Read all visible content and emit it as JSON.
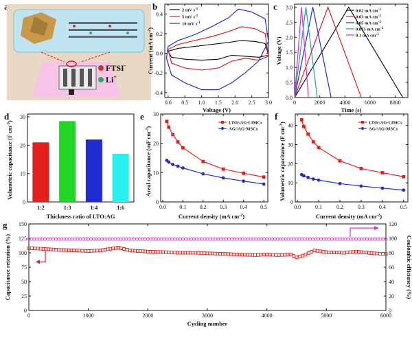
{
  "colors": {
    "red": "#e3201b",
    "blue": "#1f2ccf",
    "black": "#111111",
    "magenta": "#d52fd0",
    "green": "#23d623",
    "cyan": "#26f0f0",
    "teal": "#1aa0a0"
  },
  "panels": {
    "a": {
      "label": "a",
      "legend": [
        {
          "text": "FTSI",
          "sup": "-",
          "color": "#c0392b"
        },
        {
          "text": "Li",
          "sup": "+",
          "color": "#27ae60"
        }
      ]
    },
    "b": {
      "label": "b",
      "legend_items": [
        {
          "main": "2 mV s",
          "sup": "-1"
        },
        {
          "main": "5 mV s",
          "sup": "-1"
        },
        {
          "main": "10 mV s",
          "sup": "-1"
        }
      ],
      "ylabel_main": "Current (mA cm",
      "ylabel_sup": "-2",
      "ylabel_end": ")"
    },
    "c": {
      "label": "c",
      "legend_items": [
        {
          "main": "0.02 mA cm",
          "sup": "-2"
        },
        {
          "main": "0.03 mA cm",
          "sup": "-2"
        },
        {
          "main": "0.05 mA cm",
          "sup": "-2"
        },
        {
          "main": "0.075 mA cm",
          "sup": "-2"
        },
        {
          "main": "0.1 mA cm",
          "sup": "-2"
        }
      ]
    },
    "d": {
      "label": "d",
      "ylabel_main": "Volumetric capacitance (F cm",
      "ylabel_sup": "-3",
      "ylabel_end": ")"
    },
    "e": {
      "label": "e",
      "ylabel_main": "Areal capacitance (mF cm",
      "ylabel_sup": "-2",
      "ylabel_end": ")",
      "xlabel_main": "Current density (mA cm",
      "xlabel_sup": "-2",
      "xlabel_end": ")"
    },
    "f": {
      "label": "f",
      "ylabel_main": "Volumetric capacitance (F cm",
      "ylabel_sup": "-3",
      "ylabel_end": ")",
      "xlabel_main": "Current density (mA cm",
      "xlabel_sup": "-2",
      "xlabel_end": ")"
    },
    "g": {
      "label": "g"
    }
  },
  "chart_data": [
    {
      "id": "b",
      "type": "line",
      "xlabel": "Voltage (V)",
      "ylabel": "Current (mA cm-2)",
      "xlim": [
        -0.1,
        3.0
      ],
      "ylim": [
        -0.45,
        0.5
      ],
      "xticks": [
        0.0,
        0.5,
        1.0,
        1.5,
        2.0,
        2.5,
        3.0
      ],
      "yticks": [
        -0.4,
        -0.2,
        0.0,
        0.2,
        0.4
      ],
      "legend_position": "top-left",
      "series": [
        {
          "name": "2 mV s-1",
          "color": "#111111",
          "x": [
            0.0,
            0.3,
            0.8,
            1.3,
            1.8,
            2.2,
            2.6,
            2.9,
            3.0,
            2.7,
            2.3,
            1.9,
            1.5,
            1.0,
            0.5,
            0.1,
            0.0
          ],
          "y": [
            0.02,
            0.05,
            0.07,
            0.09,
            0.11,
            0.13,
            0.12,
            0.1,
            -0.02,
            -0.04,
            -0.03,
            -0.02,
            -0.06,
            -0.07,
            -0.06,
            -0.04,
            0.02
          ]
        },
        {
          "name": "5 mV s-1",
          "color": "#e3201b",
          "x": [
            0.0,
            0.3,
            0.8,
            1.3,
            1.8,
            2.2,
            2.6,
            2.9,
            3.0,
            2.7,
            2.3,
            1.9,
            1.5,
            1.0,
            0.5,
            0.1,
            0.0
          ],
          "y": [
            0.04,
            0.09,
            0.13,
            0.17,
            0.22,
            0.27,
            0.25,
            0.2,
            -0.03,
            -0.07,
            -0.05,
            -0.08,
            -0.15,
            -0.17,
            -0.15,
            -0.1,
            0.04
          ]
        },
        {
          "name": "10 mV s-1",
          "color": "#1f2ccf",
          "x": [
            0.0,
            0.3,
            0.8,
            1.3,
            1.8,
            2.1,
            2.5,
            2.9,
            3.0,
            2.7,
            2.3,
            1.9,
            1.5,
            1.0,
            0.5,
            0.1,
            -0.05,
            0.0
          ],
          "y": [
            0.07,
            0.13,
            0.19,
            0.27,
            0.36,
            0.45,
            0.42,
            0.35,
            0.12,
            -0.08,
            -0.2,
            -0.3,
            -0.37,
            -0.37,
            -0.3,
            -0.22,
            -0.05,
            0.07
          ]
        }
      ]
    },
    {
      "id": "c",
      "type": "line",
      "xlabel": "Time (s)",
      "ylabel": "Voltage (V)",
      "xlim": [
        0,
        9000
      ],
      "ylim": [
        0,
        3.1
      ],
      "xticks": [
        0,
        2000,
        4000,
        6000,
        8000
      ],
      "yticks": [
        0.0,
        0.5,
        1.0,
        1.5,
        2.0,
        2.5,
        3.0
      ],
      "legend_position": "top-right",
      "series": [
        {
          "name": "0.02 mA cm-2",
          "color": "#111111",
          "x": [
            0,
            4300,
            8600
          ],
          "y": [
            0.0,
            3.0,
            0.0
          ]
        },
        {
          "name": "0.03 mA cm-2",
          "color": "#e3201b",
          "x": [
            0,
            2650,
            5300
          ],
          "y": [
            0.0,
            3.0,
            0.0
          ]
        },
        {
          "name": "0.05 mA cm-2",
          "color": "#1f2ccf",
          "x": [
            0,
            1450,
            2900
          ],
          "y": [
            0.0,
            3.0,
            0.0
          ]
        },
        {
          "name": "0.075 mA cm-2",
          "color": "#1aa0a0",
          "x": [
            0,
            900,
            1800
          ],
          "y": [
            0.0,
            3.0,
            0.0
          ]
        },
        {
          "name": "0.1 mA cm-2",
          "color": "#d52fd0",
          "x": [
            0,
            550,
            1100
          ],
          "y": [
            0.0,
            3.0,
            0.0
          ]
        }
      ]
    },
    {
      "id": "d",
      "type": "bar",
      "xlabel": "Thickness ratio of LTO:AG",
      "ylabel": "Volumetric capacitance (F cm-3)",
      "ylim": [
        0,
        31
      ],
      "yticks": [
        0,
        10,
        20,
        30
      ],
      "categories": [
        "1:2",
        "1:3",
        "1:4",
        "1:6"
      ],
      "values": [
        21,
        28.5,
        22,
        17
      ],
      "bar_colors": [
        "#e3201b",
        "#23d623",
        "#1f2ccf",
        "#26f0f0"
      ]
    },
    {
      "id": "e",
      "type": "line",
      "xlabel": "Current density (mA cm-2)",
      "ylabel": "Areal capacitance (mF cm-2)",
      "xlim": [
        -0.01,
        0.52
      ],
      "ylim": [
        0,
        30
      ],
      "xticks": [
        0.0,
        0.1,
        0.2,
        0.3,
        0.4,
        0.5
      ],
      "yticks": [
        0,
        10,
        20,
        30
      ],
      "legend_position": "top-right",
      "series": [
        {
          "name": "LTO//AG-LIMCs",
          "color": "#e3201b",
          "marker": "square",
          "x": [
            0.02,
            0.03,
            0.05,
            0.075,
            0.1,
            0.2,
            0.3,
            0.4,
            0.5
          ],
          "y": [
            27.5,
            25.5,
            23.0,
            20.5,
            18.5,
            13.8,
            11.2,
            9.8,
            8.5
          ]
        },
        {
          "name": "AG//AG-MSCs",
          "color": "#1f2ccf",
          "marker": "circle",
          "x": [
            0.02,
            0.03,
            0.05,
            0.075,
            0.1,
            0.2,
            0.3,
            0.4,
            0.5
          ],
          "y": [
            14.2,
            13.6,
            12.8,
            12.2,
            11.6,
            9.6,
            8.2,
            7.1,
            6.1
          ]
        }
      ]
    },
    {
      "id": "f",
      "type": "line",
      "xlabel": "Current density (mA cm-2)",
      "ylabel": "Volumetric capacitance (F cm-3)",
      "xlim": [
        -0.01,
        0.52
      ],
      "ylim": [
        0,
        46
      ],
      "xticks": [
        0.0,
        0.1,
        0.2,
        0.3,
        0.4,
        0.5
      ],
      "yticks": [
        0,
        10,
        20,
        30,
        40
      ],
      "legend_position": "top-right",
      "series": [
        {
          "name": "LTO//AG-LIMCs",
          "color": "#e3201b",
          "marker": "square",
          "x": [
            0.02,
            0.03,
            0.05,
            0.075,
            0.1,
            0.2,
            0.3,
            0.4,
            0.5
          ],
          "y": [
            43,
            39.5,
            35.5,
            31.5,
            28.5,
            21.5,
            17.5,
            15.3,
            13.2
          ]
        },
        {
          "name": "AG//AG-MSCs",
          "color": "#1f2ccf",
          "marker": "circle",
          "x": [
            0.02,
            0.03,
            0.05,
            0.075,
            0.1,
            0.2,
            0.3,
            0.4,
            0.5
          ],
          "y": [
            14.3,
            13.7,
            12.8,
            12.0,
            11.4,
            9.6,
            8.3,
            7.2,
            6.2
          ]
        }
      ]
    },
    {
      "id": "g",
      "type": "scatter",
      "xlabel": "Cycling number",
      "ylabel": "Capacitance retention (%)",
      "ylabel_right": "Coulombic efficiency (%)",
      "xlim": [
        0,
        6000
      ],
      "ylim": [
        0,
        150
      ],
      "ylim_right": [
        0,
        120
      ],
      "xticks": [
        0,
        1000,
        2000,
        3000,
        4000,
        5000,
        6000
      ],
      "yticks": [
        0,
        25,
        50,
        75,
        100,
        125,
        150
      ],
      "yticks_right": [
        0,
        20,
        40,
        60,
        80,
        100,
        120
      ],
      "series": [
        {
          "name": "Capacitance retention",
          "color": "#e3201b",
          "axis": "left",
          "marker": "square",
          "x": [
            0,
            200,
            500,
            800,
            1000,
            1200,
            1500,
            1700,
            2000,
            2300,
            2500,
            2800,
            3000,
            3300,
            3500,
            3800,
            4000,
            4200,
            4400,
            4500,
            4600,
            4800,
            5000,
            5300,
            5500,
            5800,
            6000
          ],
          "y": [
            108,
            107,
            105,
            104,
            103,
            104,
            109,
            104,
            102,
            101,
            100,
            100,
            99,
            98,
            97,
            96,
            97,
            96,
            97,
            92,
            95,
            104,
            101,
            100,
            102,
            99,
            98
          ]
        },
        {
          "name": "Coulombic efficiency",
          "color": "#d52fd0",
          "axis": "right",
          "marker": "circle",
          "x": [
            0,
            500,
            1000,
            1500,
            2000,
            2500,
            3000,
            3500,
            4000,
            4500,
            5000,
            5500,
            6000
          ],
          "y": [
            99,
            99,
            99,
            99,
            99,
            99,
            99,
            99,
            99,
            99,
            99,
            99,
            99
          ]
        }
      ]
    }
  ]
}
